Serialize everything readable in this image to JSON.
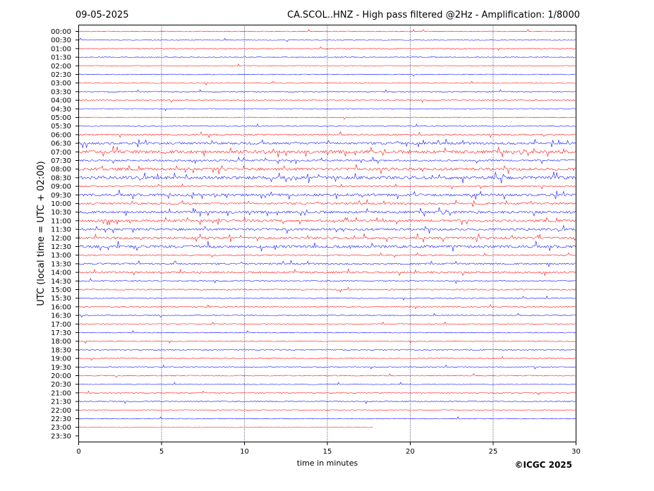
{
  "header": {
    "date": "09-05-2025",
    "title": "CA.SCOL..HNZ - High pass filtered @2Hz - Amplification: 1/8000"
  },
  "copyright": "©ICGC 2025",
  "chart_data": {
    "type": "line",
    "xlabel": "time in minutes",
    "ylabel": "UTC (local time = UTC + 02:00)",
    "xlim": [
      0,
      30
    ],
    "x_ticks": [
      "0",
      "5",
      "10",
      "15",
      "20",
      "25",
      "30"
    ],
    "vertical_gridlines_at": [
      5,
      10,
      15,
      20,
      25
    ],
    "row_labels": [
      "00:00",
      "00:30",
      "01:00",
      "01:30",
      "02:00",
      "02:30",
      "03:00",
      "03:30",
      "04:00",
      "04:30",
      "05:00",
      "05:30",
      "06:00",
      "06:30",
      "07:00",
      "07:30",
      "08:00",
      "08:30",
      "09:00",
      "09:30",
      "10:00",
      "10:30",
      "11:00",
      "11:30",
      "12:00",
      "12:30",
      "13:00",
      "13:30",
      "14:00",
      "14:30",
      "15:00",
      "15:30",
      "16:00",
      "16:30",
      "17:00",
      "17:30",
      "18:00",
      "18:30",
      "19:00",
      "19:30",
      "20:00",
      "20:30",
      "21:00",
      "21:30",
      "22:00",
      "22:30",
      "23:00",
      "23:30"
    ],
    "series_colors": [
      "#ff0000",
      "#0000ff"
    ],
    "activity_level": [
      0.05,
      0.04,
      0.03,
      0.03,
      0.03,
      0.05,
      0.04,
      0.05,
      0.1,
      0.05,
      0.05,
      0.08,
      0.2,
      0.4,
      0.6,
      0.25,
      0.5,
      0.6,
      0.15,
      0.45,
      0.3,
      0.45,
      0.4,
      0.4,
      0.4,
      0.5,
      0.15,
      0.25,
      0.3,
      0.15,
      0.15,
      0.1,
      0.1,
      0.08,
      0.06,
      0.06,
      0.06,
      0.06,
      0.05,
      0.08,
      0.08,
      0.05,
      0.05,
      0.1,
      0.04,
      0.04,
      0.02,
      0.0
    ],
    "trace_end_minute": [
      30,
      30,
      30,
      30,
      30,
      30,
      30,
      30,
      30,
      30,
      30,
      30,
      30,
      30,
      30,
      30,
      30,
      30,
      30,
      30,
      30,
      30,
      30,
      30,
      30,
      30,
      30,
      30,
      30,
      30,
      30,
      30,
      30,
      30,
      30,
      30,
      30,
      30,
      30,
      30,
      30,
      30,
      30,
      30,
      30,
      30,
      17.8,
      0
    ]
  }
}
